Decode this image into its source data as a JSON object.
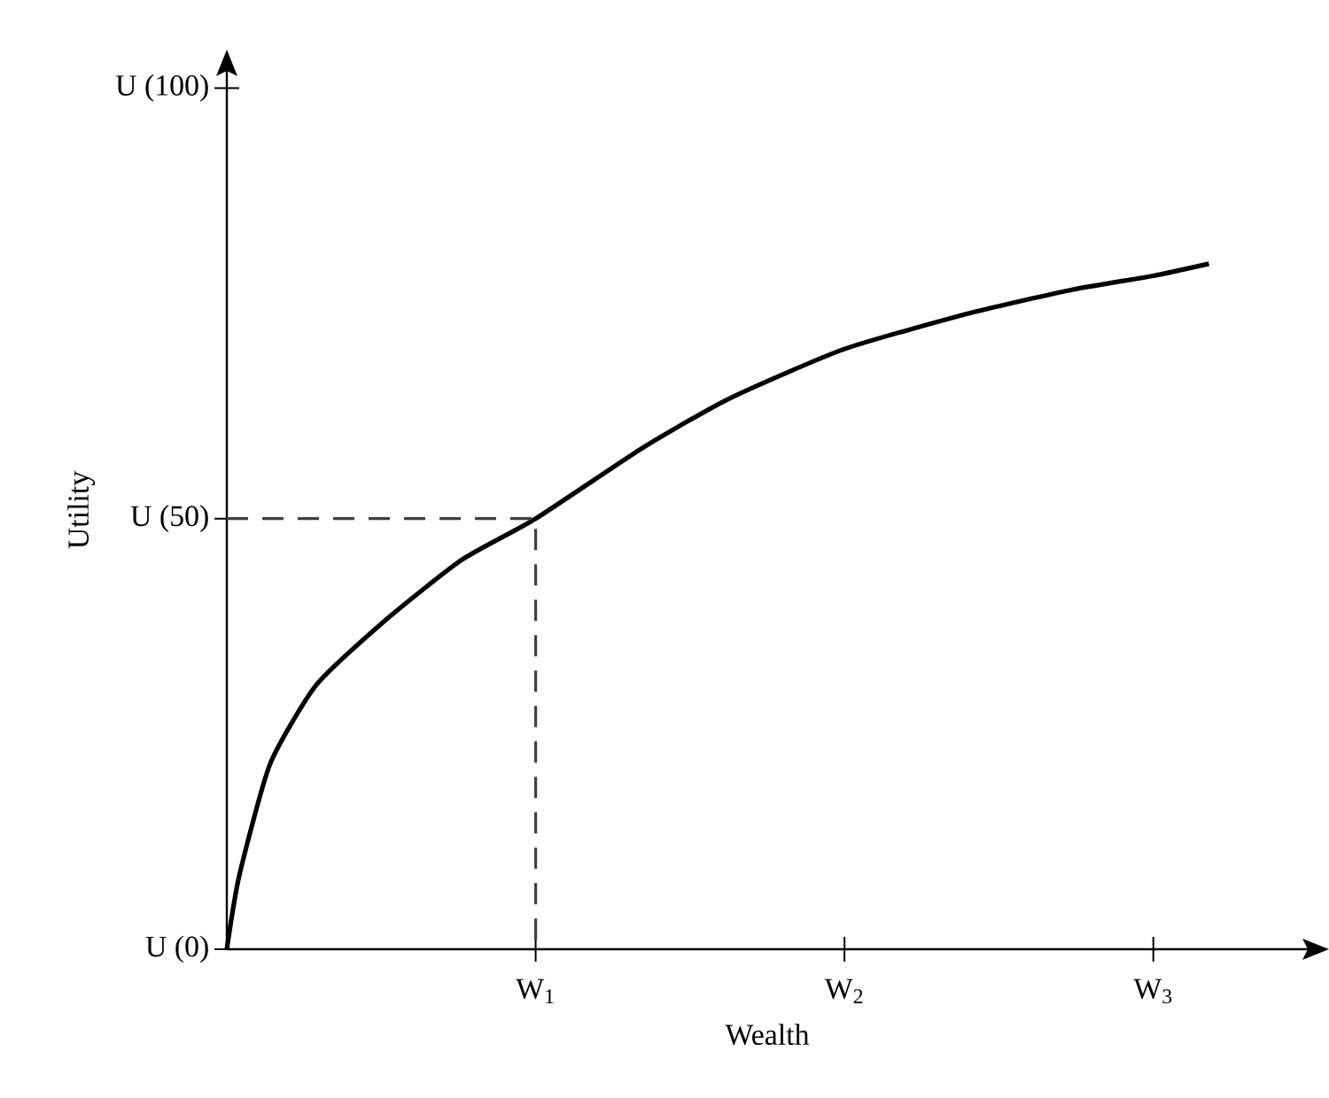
{
  "chart_data": {
    "type": "line",
    "xlabel": "Wealth",
    "ylabel": "Utility",
    "xlim": [
      0,
      3.5
    ],
    "ylim": [
      0,
      102
    ],
    "xticks": [
      {
        "value": 1,
        "label": "W$_{1}$"
      },
      {
        "value": 2,
        "label": "W$_{2}$"
      },
      {
        "value": 3,
        "label": "W$_{3}$"
      }
    ],
    "yticks": [
      {
        "value": 0,
        "label": "U (0)"
      },
      {
        "value": 50,
        "label": "U (50)"
      },
      {
        "value": 100,
        "label": "U (100)"
      }
    ],
    "series": [
      {
        "color": "#000000",
        "line_style": "solid",
        "x": [
          0,
          0.04,
          0.14,
          0.29,
          0.51,
          0.76,
          1,
          1.35,
          1.63,
          2,
          2.41,
          2.74,
          3,
          3.18
        ],
        "values": [
          0,
          8.5,
          21.5,
          30.7,
          38.1,
          45.2,
          50,
          58.3,
          64.0,
          69.7,
          73.9,
          76.6,
          78.2,
          79.6
        ]
      },
      {
        "color": "#404040",
        "line_style": "dashed",
        "x": [
          0,
          1,
          1
        ],
        "values": [
          50,
          50,
          0
        ]
      }
    ]
  }
}
